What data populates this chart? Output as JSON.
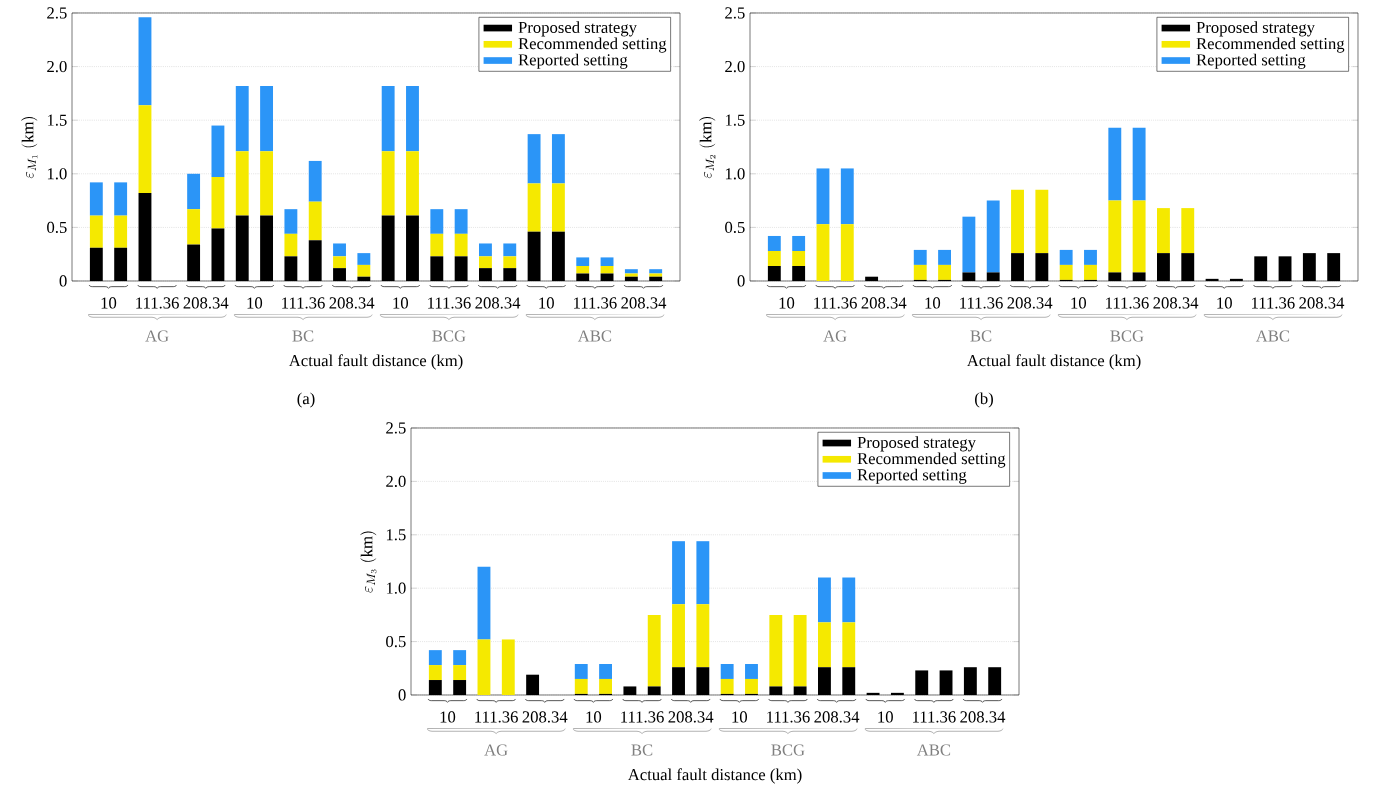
{
  "chart_data": [
    {
      "type": "bar",
      "stacked": true,
      "title": "(a)",
      "xlabel": "Actual fault distance (km)",
      "ylabel": "\\varepsilon_{M_1}\\ \\mathrm{(km)}",
      "categories": [
        "10",
        null,
        "111.36",
        null,
        "208.34",
        null,
        "10",
        null,
        "111.36",
        null,
        "208.34",
        null,
        "10",
        null,
        "111.36",
        null,
        "208.34",
        null,
        "10",
        null,
        "111.36",
        null,
        "208.34",
        null
      ],
      "series": [
        {
          "name": "Proposed strategy",
          "color": "#000000",
          "values": [
            0.31,
            0.31,
            0.82,
            null,
            0.34,
            0.49,
            0.61,
            0.61,
            0.23,
            0.38,
            0.12,
            0.04,
            0.61,
            0.61,
            0.23,
            0.23,
            0.12,
            0.12,
            0.46,
            0.46,
            0.07,
            0.07,
            0.04,
            0.04
          ]
        },
        {
          "name": "Recommended setting",
          "color": "#f5e900",
          "values": [
            0.3,
            0.3,
            0.82,
            null,
            0.33,
            0.48,
            0.6,
            0.6,
            0.21,
            0.36,
            0.11,
            0.11,
            0.6,
            0.6,
            0.21,
            0.21,
            0.11,
            0.11,
            0.45,
            0.45,
            0.07,
            0.07,
            0.03,
            0.03
          ]
        },
        {
          "name": "Reported setting",
          "color": "#2b95f7",
          "values": [
            0.31,
            0.31,
            0.82,
            null,
            0.33,
            0.48,
            0.61,
            0.61,
            0.23,
            0.38,
            0.12,
            0.11,
            0.61,
            0.61,
            0.23,
            0.23,
            0.12,
            0.12,
            0.46,
            0.46,
            0.08,
            0.08,
            0.04,
            0.04
          ]
        }
      ],
      "annotations": [
        "AG",
        "BC",
        "BCG",
        "ABC"
      ],
      "ylim": [
        0,
        2.5
      ],
      "yticks": [
        {
          "value": 0,
          "label": "0"
        },
        0.5,
        {
          "value": 1,
          "label": "1.0"
        },
        1.5,
        {
          "value": 2,
          "label": "2.0"
        },
        2.5
      ],
      "grid": "y",
      "legend": "top right"
    },
    {
      "type": "bar",
      "stacked": true,
      "title": "(b)",
      "xlabel": "Actual fault distance (km)",
      "ylabel": "\\varepsilon_{M_2}\\ \\mathrm{(km)}",
      "categories": [
        "10",
        null,
        "111.36",
        null,
        "208.34",
        null,
        "10",
        null,
        "111.36",
        null,
        "208.34",
        null,
        "10",
        null,
        "111.36",
        null,
        "208.34",
        null,
        "10",
        null,
        "111.36",
        null,
        "208.34",
        null
      ],
      "series": [
        {
          "name": "Proposed strategy",
          "color": "#000000",
          "values": [
            0.14,
            0.14,
            null,
            null,
            0.04,
            null,
            0.01,
            0.01,
            0.08,
            0.08,
            0.26,
            0.26,
            0.01,
            0.01,
            0.08,
            0.08,
            0.26,
            0.26,
            0.02,
            0.02,
            0.23,
            0.23,
            0.26,
            0.26
          ]
        },
        {
          "name": "Recommended setting",
          "color": "#f5e900",
          "values": [
            0.14,
            0.14,
            0.53,
            0.53,
            null,
            null,
            0.14,
            0.14,
            null,
            null,
            0.59,
            0.59,
            0.14,
            0.14,
            0.67,
            0.67,
            0.42,
            0.42,
            null,
            null,
            null,
            null,
            null,
            null
          ]
        },
        {
          "name": "Reported setting",
          "color": "#2b95f7",
          "values": [
            0.14,
            0.14,
            0.52,
            0.52,
            null,
            null,
            0.14,
            0.14,
            0.52,
            0.67,
            null,
            null,
            0.14,
            0.14,
            0.68,
            0.68,
            null,
            null,
            null,
            null,
            null,
            null,
            null,
            null
          ]
        }
      ],
      "annotations": [
        "AG",
        "BC",
        "BCG",
        "ABC"
      ],
      "ylim": [
        0,
        2.5
      ],
      "yticks": [
        {
          "value": 0,
          "label": "0"
        },
        0.5,
        {
          "value": 1,
          "label": "1.0"
        },
        1.5,
        {
          "value": 2,
          "label": "2.0"
        },
        2.5
      ],
      "grid": "y",
      "legend": "top right"
    },
    {
      "type": "bar",
      "stacked": true,
      "xlabel": "Actual fault distance (km)",
      "ylabel": "\\varepsilon_{M_3}\\ \\mathrm{(km)}",
      "categories": [
        "10",
        null,
        "111.36",
        null,
        "208.34",
        null,
        "10",
        null,
        "111.36",
        null,
        "208.34",
        null,
        "10",
        null,
        "111.36",
        null,
        "208.34",
        null,
        "10",
        null,
        "111.36",
        null,
        "208.34",
        null
      ],
      "series": [
        {
          "name": "Proposed strategy",
          "color": "#000000",
          "values": [
            0.14,
            0.14,
            null,
            null,
            0.19,
            null,
            0.01,
            0.01,
            0.08,
            0.08,
            0.26,
            0.26,
            0.01,
            0.01,
            0.08,
            0.08,
            0.26,
            0.26,
            0.02,
            0.02,
            0.23,
            0.23,
            0.26,
            0.26
          ]
        },
        {
          "name": "Recommended setting",
          "color": "#f5e900",
          "values": [
            0.14,
            0.14,
            0.52,
            0.52,
            null,
            null,
            0.14,
            0.14,
            null,
            0.67,
            0.59,
            0.59,
            0.14,
            0.14,
            0.67,
            0.67,
            0.42,
            0.42,
            null,
            null,
            null,
            null,
            null,
            null
          ]
        },
        {
          "name": "Reported setting",
          "color": "#2b95f7",
          "values": [
            0.14,
            0.14,
            0.68,
            null,
            null,
            null,
            0.14,
            0.14,
            null,
            null,
            0.59,
            0.59,
            0.14,
            0.14,
            null,
            null,
            0.42,
            0.42,
            null,
            null,
            null,
            null,
            null,
            null
          ]
        }
      ],
      "annotations": [
        "AG",
        "BC",
        "BCG",
        "ABC"
      ],
      "ylim": [
        0,
        2.5
      ],
      "yticks": [
        {
          "value": 0,
          "label": "0"
        },
        0.5,
        {
          "value": 1,
          "label": "1.0"
        },
        1.5,
        {
          "value": 2,
          "label": "2.0"
        },
        2.5
      ],
      "grid": "y",
      "legend": "top right"
    }
  ]
}
